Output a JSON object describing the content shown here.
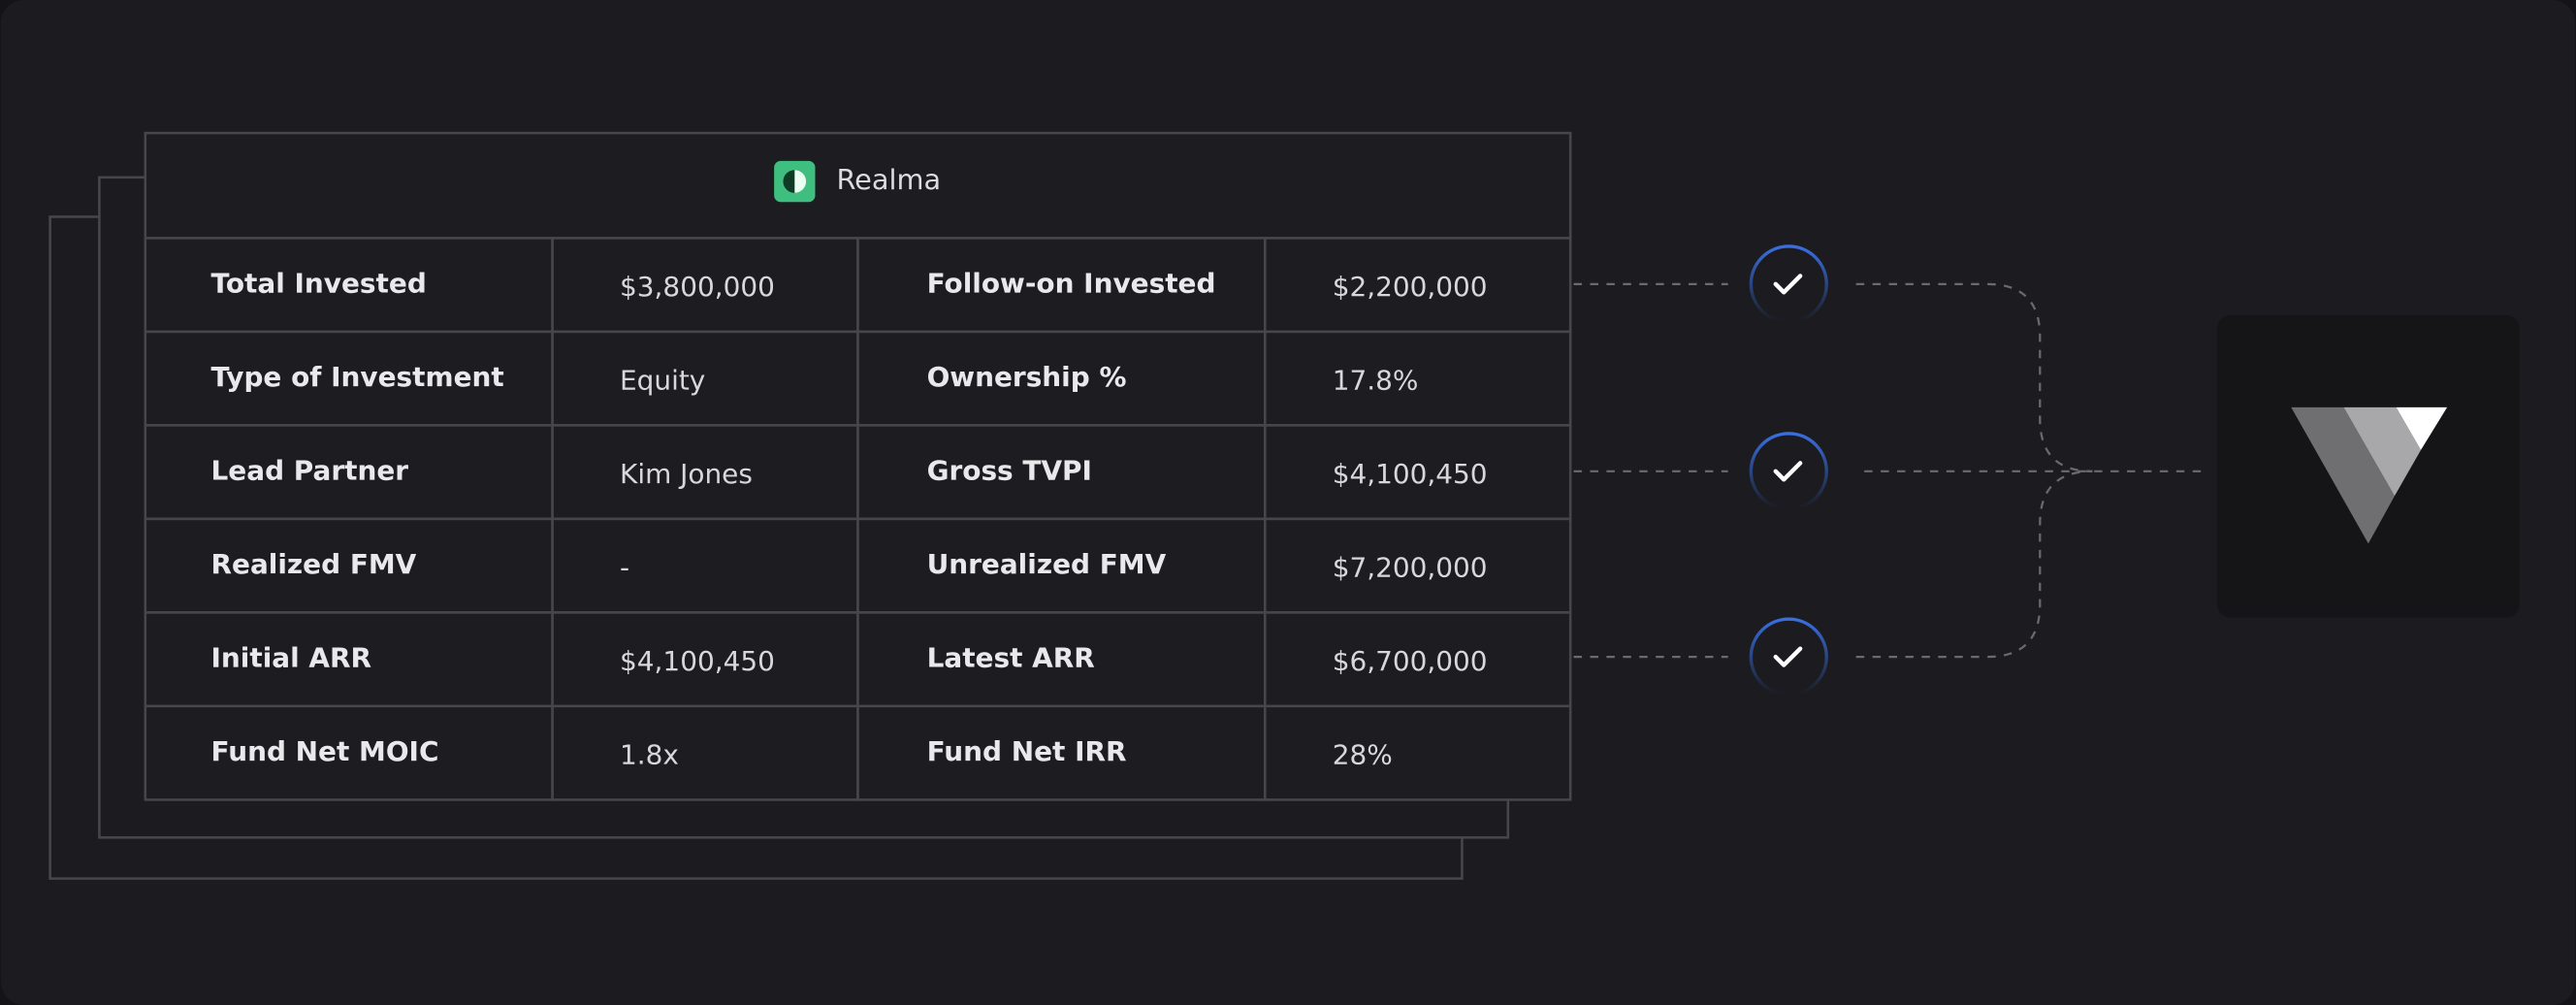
{
  "header": {
    "title": "Realma"
  },
  "table": {
    "rows": [
      [
        "Total Invested",
        "$3,800,000",
        "Follow-on Invested",
        "$2,200,000"
      ],
      [
        "Type of Investment",
        "Equity",
        "Ownership %",
        "17.8%"
      ],
      [
        "Lead Partner",
        "Kim Jones",
        "Gross TVPI",
        "$4,100,450"
      ],
      [
        "Realized FMV",
        "-",
        "Unrealized FMV",
        "$7,200,000"
      ],
      [
        "Initial ARR",
        "$4,100,450",
        "Latest ARR",
        "$6,700,000"
      ],
      [
        "Fund Net MOIC",
        "1.8x",
        "Fund Net IRR",
        "28%"
      ]
    ]
  }
}
